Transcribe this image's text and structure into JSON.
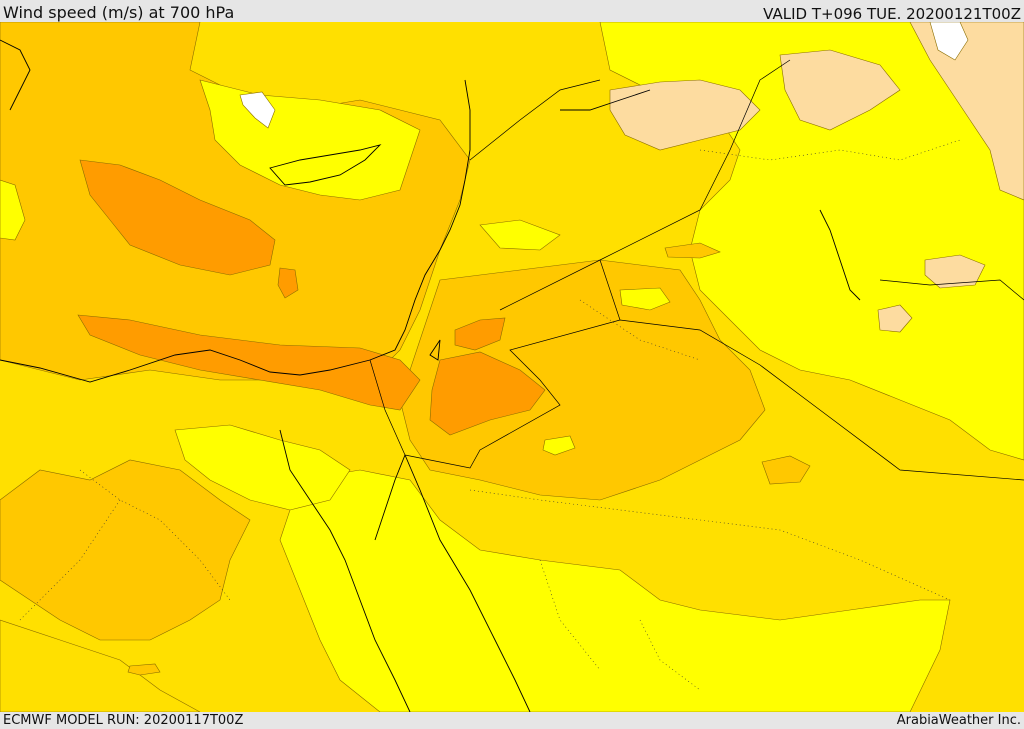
{
  "header": {
    "title": "Wind speed (m/s) at 700 hPa",
    "valid_time": "VALID T+096 TUE. 20200121T00Z"
  },
  "footer": {
    "model_run": "ECMWF MODEL RUN: 20200117T00Z",
    "credit": "ArabiaWeather Inc."
  },
  "map": {
    "variable": "wind speed",
    "units": "m/s",
    "level": "700 hPa",
    "colors": {
      "pale_peach": "#fddca0",
      "yellow": "#ffff00",
      "gold": "#ffe000",
      "light_orange": "#ffc800",
      "orange": "#ffb400",
      "dark_orange": "#ff9c00",
      "white": "#ffffff"
    }
  }
}
